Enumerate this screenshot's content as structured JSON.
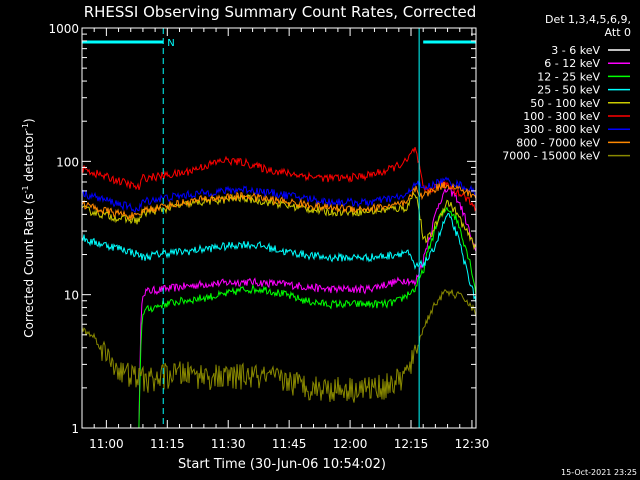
{
  "chart_data": {
    "type": "line",
    "title": "RHESSI Observing Summary Count Rates, Corrected",
    "xlabel": "Start Time (30-Jun-06 10:54:02)",
    "ylabel_main": "Corrected Count Rate (s",
    "ylabel_sup1": "-1",
    "ylabel_mid": " detector",
    "ylabel_sup2": "-1",
    "ylabel_end": ")",
    "yscale": "log",
    "ylim": [
      1,
      1000
    ],
    "xlim": [
      0,
      97
    ],
    "x_ticks": [
      {
        "x": 6,
        "label": "11:00"
      },
      {
        "x": 21,
        "label": "11:15"
      },
      {
        "x": 36,
        "label": "11:30"
      },
      {
        "x": 51,
        "label": "11:45"
      },
      {
        "x": 66,
        "label": "12:00"
      },
      {
        "x": 81,
        "label": "12:15"
      },
      {
        "x": 96,
        "label": "12:30"
      }
    ],
    "y_ticks": [
      {
        "y": 1,
        "label": "1"
      },
      {
        "y": 10,
        "label": "10"
      },
      {
        "y": 100,
        "label": "100"
      },
      {
        "y": 1000,
        "label": "1000"
      }
    ],
    "legend_header": [
      "Det 1,3,4,5,6,9,",
      "Att 0"
    ],
    "footer_date": "15-Oct-2021 23:25",
    "annotations": {
      "night_label": "N",
      "night_bars": [
        [
          0,
          20
        ],
        [
          84,
          97
        ]
      ],
      "boundaries": [
        {
          "x": 0,
          "style": "solid"
        },
        {
          "x": 20,
          "style": "dashed"
        },
        {
          "x": 83,
          "style": "solid"
        },
        {
          "x": 97,
          "style": "dashed"
        }
      ]
    },
    "series": [
      {
        "name": "3 - 6 keV",
        "color": "#ffffff",
        "x": [
          0,
          48,
          49,
          50,
          55,
          60,
          65,
          70,
          80,
          97
        ],
        "values": [
          1,
          1,
          1,
          1,
          1,
          1,
          1,
          1,
          1,
          1
        ]
      },
      {
        "name": "6 - 12 keV",
        "color": "#ff00ff",
        "x": [
          14,
          15,
          20,
          30,
          40,
          50,
          60,
          70,
          80,
          82,
          84,
          86,
          88,
          90,
          92,
          94,
          96,
          97
        ],
        "values": [
          1,
          10.5,
          11,
          12,
          12.5,
          12,
          11,
          11,
          13,
          12,
          18,
          30,
          50,
          62,
          55,
          40,
          25,
          20
        ]
      },
      {
        "name": "12 - 25 keV",
        "color": "#00ff00",
        "x": [
          14,
          15,
          20,
          30,
          35,
          40,
          45,
          50,
          55,
          60,
          65,
          70,
          75,
          78,
          80,
          82,
          84,
          86,
          88,
          90,
          92,
          94,
          96,
          97
        ],
        "values": [
          1,
          7.5,
          8.5,
          9.5,
          10,
          11,
          11,
          10,
          9,
          8.5,
          8.5,
          8.5,
          8.5,
          9,
          10,
          11,
          15,
          25,
          38,
          45,
          38,
          25,
          15,
          10
        ]
      },
      {
        "name": "25 - 50 keV",
        "color": "#00ffff",
        "x": [
          0,
          2,
          5,
          10,
          14,
          15,
          20,
          25,
          30,
          35,
          40,
          45,
          50,
          55,
          60,
          65,
          70,
          75,
          80,
          82,
          84,
          86,
          88,
          90,
          92,
          94,
          96,
          97
        ],
        "values": [
          27,
          25,
          24,
          22,
          20,
          19,
          20.5,
          21,
          22,
          23,
          24,
          23,
          21,
          20,
          19,
          19,
          19,
          19.5,
          21,
          16,
          17,
          20,
          28,
          40,
          30,
          18,
          11,
          9
        ]
      },
      {
        "name": "50 - 100 keV",
        "color": "#cccc00",
        "x": [
          0,
          5,
          10,
          14,
          15,
          20,
          30,
          40,
          50,
          60,
          70,
          80,
          82,
          84,
          86,
          88,
          90,
          92,
          94,
          96,
          97
        ],
        "values": [
          44,
          40,
          37,
          36,
          41,
          44,
          50,
          53,
          47,
          42,
          42,
          45,
          60,
          25,
          28,
          38,
          50,
          42,
          32,
          25,
          23
        ]
      },
      {
        "name": "100 - 300 keV",
        "color": "#ff0000",
        "x": [
          0,
          5,
          10,
          14,
          15,
          20,
          25,
          30,
          35,
          40,
          45,
          50,
          55,
          60,
          65,
          70,
          75,
          80,
          82,
          84,
          86,
          88,
          90,
          92,
          94,
          96,
          97
        ],
        "values": [
          88,
          78,
          70,
          63,
          75,
          78,
          82,
          92,
          102,
          98,
          88,
          82,
          78,
          75,
          75,
          78,
          85,
          100,
          125,
          60,
          62,
          66,
          68,
          60,
          55,
          48,
          45
        ]
      },
      {
        "name": "300 - 800 keV",
        "color": "#0000ff",
        "x": [
          0,
          5,
          10,
          14,
          15,
          20,
          30,
          40,
          50,
          60,
          70,
          80,
          82,
          84,
          86,
          88,
          90,
          92,
          94,
          96,
          97
        ],
        "values": [
          58,
          52,
          47,
          43,
          50,
          53,
          58,
          62,
          56,
          50,
          49,
          55,
          70,
          62,
          66,
          70,
          72,
          68,
          65,
          60,
          58
        ]
      },
      {
        "name": "800 - 7000 keV",
        "color": "#ff8800",
        "x": [
          0,
          5,
          10,
          14,
          15,
          20,
          30,
          40,
          50,
          60,
          70,
          80,
          82,
          84,
          86,
          88,
          90,
          92,
          94,
          96,
          97
        ],
        "values": [
          48,
          43,
          40,
          38,
          43,
          46,
          52,
          55,
          50,
          45,
          44,
          48,
          62,
          55,
          60,
          65,
          67,
          63,
          60,
          56,
          54
        ]
      },
      {
        "name": "7000 - 15000 keV",
        "color": "#888800",
        "x": [
          0,
          3,
          6,
          10,
          14,
          18,
          20,
          25,
          30,
          35,
          40,
          45,
          50,
          55,
          60,
          65,
          70,
          75,
          78,
          80,
          82,
          84,
          86,
          88,
          90,
          92,
          94,
          96,
          97
        ],
        "values": [
          5.5,
          4.8,
          3.5,
          2.6,
          2.4,
          2.3,
          2.5,
          2.6,
          2.5,
          2.4,
          2.5,
          2.4,
          2.3,
          2.1,
          2.0,
          2.0,
          2.0,
          2.1,
          2.3,
          2.6,
          3.5,
          5.5,
          7.5,
          9.5,
          10.5,
          10,
          9.5,
          8,
          7
        ]
      }
    ]
  }
}
